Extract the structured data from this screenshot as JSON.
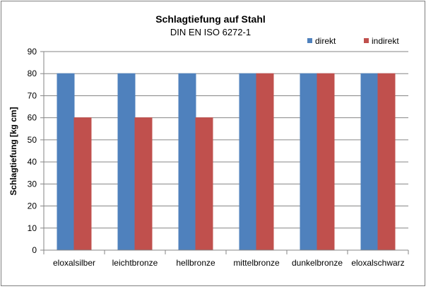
{
  "chart_data": {
    "type": "bar",
    "title": "Schlagtiefung auf Stahl",
    "subtitle": "DIN EN ISO 6272-1",
    "xlabel": "",
    "ylabel": "Schlagtiefung [kg cm]",
    "ylim": [
      0,
      90
    ],
    "ytick_step": 10,
    "grid": true,
    "legend_position": "top-right",
    "categories": [
      "eloxalsilber",
      "leichtbronze",
      "hellbronze",
      "mittelbronze",
      "dunkelbronze",
      "eloxalschwarz"
    ],
    "series": [
      {
        "name": "direkt",
        "color": "#4f81bd",
        "values": [
          80,
          80,
          80,
          80,
          80,
          80
        ]
      },
      {
        "name": "indirekt",
        "color": "#c0504d",
        "values": [
          60,
          60,
          60,
          80,
          80,
          80
        ]
      }
    ]
  }
}
